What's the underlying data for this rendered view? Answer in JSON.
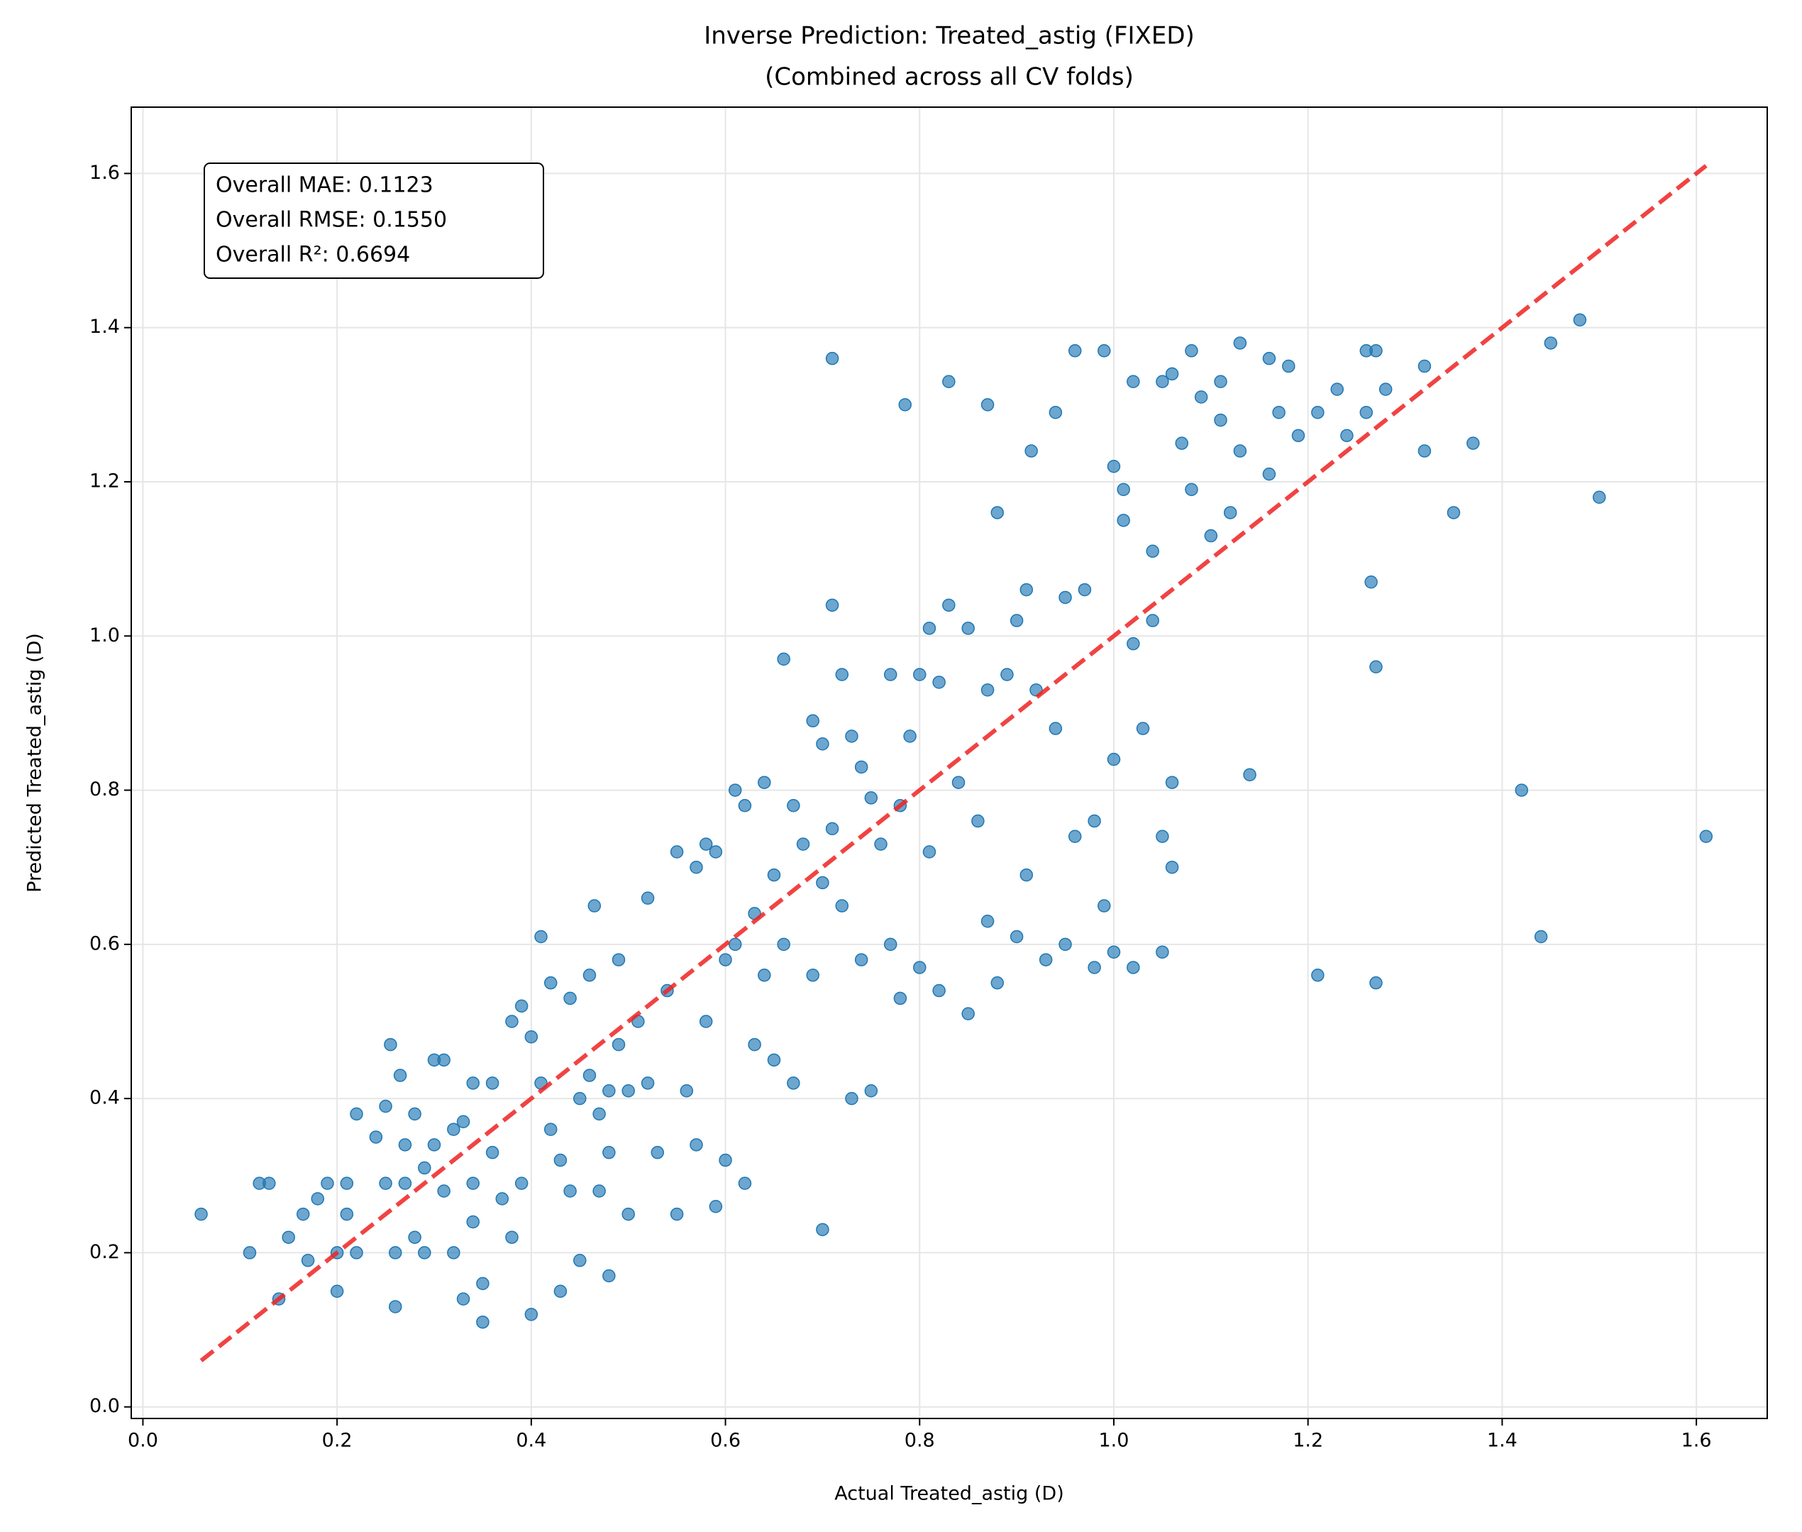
{
  "chart_data": {
    "type": "scatter",
    "title": "Inverse Prediction: Treated_astig (FIXED)",
    "subtitle": "(Combined across all CV folds)",
    "x_label": "Actual Treated_astig (D)",
    "y_label": "Predicted Treated_astig (D)",
    "annotations": [
      "Overall MAE: 0.1123",
      "Overall RMSE: 0.1550",
      "Overall R²: 0.6694"
    ],
    "grid": true,
    "identity_line": {
      "range": [
        0.06,
        1.61
      ],
      "color": "#ee2222"
    },
    "xlim": [
      -0.012,
      1.673
    ],
    "ylim": [
      -0.015,
      1.686
    ],
    "xticks": [
      {
        "value": 0,
        "label": "0.0"
      },
      0.2,
      0.4,
      0.6,
      0.8,
      {
        "value": 1,
        "label": "1.0"
      },
      1.2,
      1.4,
      1.6
    ],
    "yticks": [
      {
        "value": 0,
        "label": "0.0"
      },
      0.2,
      0.4,
      0.6,
      0.8,
      {
        "value": 1,
        "label": "1.0"
      },
      1.2,
      1.4,
      1.6
    ],
    "series": [
      {
        "color": "#1f77b4",
        "x": [
          0.06,
          0.11,
          0.12,
          0.13,
          0.14,
          0.15,
          0.165,
          0.17,
          0.18,
          0.19,
          0.2,
          0.2,
          0.21,
          0.21,
          0.22,
          0.22,
          0.24,
          0.25,
          0.25,
          0.255,
          0.26,
          0.26,
          0.265,
          0.27,
          0.27,
          0.28,
          0.28,
          0.29,
          0.29,
          0.3,
          0.3,
          0.31,
          0.31,
          0.32,
          0.32,
          0.33,
          0.33,
          0.34,
          0.34,
          0.34,
          0.35,
          0.35,
          0.36,
          0.36,
          0.37,
          0.38,
          0.38,
          0.39,
          0.39,
          0.4,
          0.4,
          0.41,
          0.41,
          0.42,
          0.42,
          0.43,
          0.43,
          0.44,
          0.44,
          0.45,
          0.45,
          0.46,
          0.46,
          0.465,
          0.47,
          0.47,
          0.48,
          0.48,
          0.48,
          0.49,
          0.49,
          0.5,
          0.5,
          0.51,
          0.52,
          0.52,
          0.53,
          0.54,
          0.55,
          0.55,
          0.56,
          0.57,
          0.57,
          0.58,
          0.58,
          0.59,
          0.59,
          0.6,
          0.6,
          0.61,
          0.61,
          0.62,
          0.62,
          0.63,
          0.63,
          0.64,
          0.64,
          0.65,
          0.65,
          0.66,
          0.66,
          0.67,
          0.67,
          0.68,
          0.69,
          0.69,
          0.7,
          0.7,
          0.7,
          0.71,
          0.71,
          0.71,
          0.72,
          0.72,
          0.73,
          0.73,
          0.74,
          0.74,
          0.75,
          0.75,
          0.76,
          0.77,
          0.77,
          0.78,
          0.78,
          0.785,
          0.79,
          0.8,
          0.8,
          0.81,
          0.81,
          0.82,
          0.82,
          0.83,
          0.83,
          0.84,
          0.85,
          0.85,
          0.86,
          0.87,
          0.87,
          0.87,
          0.88,
          0.88,
          0.89,
          0.9,
          0.9,
          0.91,
          0.91,
          0.915,
          0.92,
          0.93,
          0.94,
          0.94,
          0.95,
          0.95,
          0.96,
          0.96,
          0.97,
          0.98,
          0.98,
          0.99,
          0.99,
          1.0,
          1.0,
          1.0,
          1.01,
          1.01,
          1.02,
          1.02,
          1.02,
          1.03,
          1.04,
          1.04,
          1.05,
          1.05,
          1.05,
          1.06,
          1.06,
          1.06,
          1.07,
          1.08,
          1.08,
          1.09,
          1.1,
          1.11,
          1.11,
          1.12,
          1.13,
          1.13,
          1.14,
          1.16,
          1.16,
          1.17,
          1.18,
          1.19,
          1.21,
          1.21,
          1.23,
          1.24,
          1.26,
          1.26,
          1.265,
          1.27,
          1.27,
          1.27,
          1.28,
          1.32,
          1.32,
          1.35,
          1.37,
          1.42,
          1.44,
          1.45,
          1.48,
          1.5,
          1.61
        ],
        "values": [
          0.25,
          0.2,
          0.29,
          0.29,
          0.14,
          0.22,
          0.25,
          0.19,
          0.27,
          0.29,
          0.15,
          0.2,
          0.29,
          0.25,
          0.38,
          0.2,
          0.35,
          0.29,
          0.39,
          0.47,
          0.2,
          0.13,
          0.43,
          0.29,
          0.34,
          0.22,
          0.38,
          0.2,
          0.31,
          0.45,
          0.34,
          0.45,
          0.28,
          0.36,
          0.2,
          0.37,
          0.14,
          0.42,
          0.29,
          0.24,
          0.11,
          0.16,
          0.33,
          0.42,
          0.27,
          0.5,
          0.22,
          0.52,
          0.29,
          0.48,
          0.12,
          0.42,
          0.61,
          0.55,
          0.36,
          0.32,
          0.15,
          0.53,
          0.28,
          0.4,
          0.19,
          0.56,
          0.43,
          0.65,
          0.28,
          0.38,
          0.41,
          0.33,
          0.17,
          0.58,
          0.47,
          0.41,
          0.25,
          0.5,
          0.66,
          0.42,
          0.33,
          0.54,
          0.72,
          0.25,
          0.41,
          0.7,
          0.34,
          0.73,
          0.5,
          0.72,
          0.26,
          0.58,
          0.32,
          0.8,
          0.6,
          0.78,
          0.29,
          0.64,
          0.47,
          0.81,
          0.56,
          0.69,
          0.45,
          0.97,
          0.6,
          0.78,
          0.42,
          0.73,
          0.89,
          0.56,
          0.86,
          0.23,
          0.68,
          1.04,
          1.36,
          0.75,
          0.95,
          0.65,
          0.87,
          0.4,
          0.83,
          0.58,
          0.79,
          0.41,
          0.73,
          0.95,
          0.6,
          0.78,
          0.53,
          1.3,
          0.87,
          0.95,
          0.57,
          1.01,
          0.72,
          0.94,
          0.54,
          1.33,
          1.04,
          0.81,
          1.01,
          0.51,
          0.76,
          1.3,
          0.93,
          0.63,
          1.16,
          0.55,
          0.95,
          1.02,
          0.61,
          1.06,
          0.69,
          1.24,
          0.93,
          0.58,
          1.29,
          0.88,
          1.05,
          0.6,
          1.37,
          0.74,
          1.06,
          0.76,
          0.57,
          1.37,
          0.65,
          1.22,
          0.84,
          0.59,
          1.19,
          1.15,
          1.33,
          0.99,
          0.57,
          0.88,
          1.11,
          1.02,
          1.33,
          0.74,
          0.59,
          1.34,
          0.81,
          0.7,
          1.25,
          1.37,
          1.19,
          1.31,
          1.13,
          1.33,
          1.28,
          1.16,
          1.38,
          1.24,
          0.82,
          1.36,
          1.21,
          1.29,
          1.35,
          1.26,
          1.29,
          0.56,
          1.32,
          1.26,
          1.37,
          1.29,
          1.07,
          1.37,
          0.96,
          0.55,
          1.32,
          1.35,
          1.24,
          1.16,
          1.25,
          0.8,
          0.61,
          1.38,
          1.41,
          1.18,
          0.74
        ]
      }
    ]
  }
}
